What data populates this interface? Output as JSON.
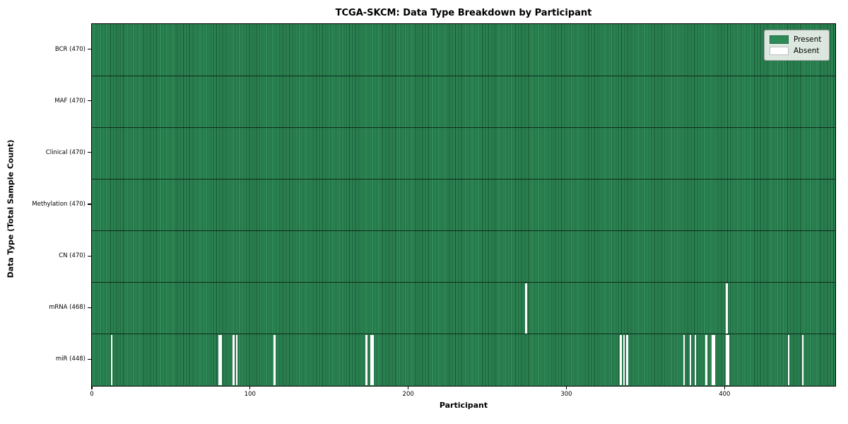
{
  "chart_data": {
    "type": "heatmap",
    "title": "TCGA-SKCM: Data Type Breakdown by Participant",
    "xlabel": "Participant",
    "ylabel": "Data Type (Total Sample Count)",
    "x_ticks": [
      0,
      100,
      200,
      300,
      400
    ],
    "x_range": [
      0,
      470
    ],
    "n_participants": 470,
    "grid": false,
    "legend_position": "upper right",
    "colors": {
      "present": "#2e8b57",
      "absent": "#ffffff",
      "cell_edge": "#17502f",
      "row_divider": "#000000"
    },
    "rows": [
      {
        "label": "BCR (470)",
        "data_type": "BCR",
        "total_samples": 470,
        "absent_participants": []
      },
      {
        "label": "MAF (470)",
        "data_type": "MAF",
        "total_samples": 470,
        "absent_participants": []
      },
      {
        "label": "Clinical (470)",
        "data_type": "Clinical",
        "total_samples": 470,
        "absent_participants": []
      },
      {
        "label": "Methylation (470)",
        "data_type": "Methylation",
        "total_samples": 470,
        "absent_participants": []
      },
      {
        "label": "CN (470)",
        "data_type": "CN",
        "total_samples": 470,
        "absent_participants": []
      },
      {
        "label": "mRNA (468)",
        "data_type": "mRNA",
        "total_samples": 468,
        "absent_participants": [
          274,
          401
        ]
      },
      {
        "label": "miR (448)",
        "data_type": "miR",
        "total_samples": 448,
        "absent_participants": [
          12,
          80,
          81,
          89,
          91,
          115,
          173,
          176,
          177,
          334,
          336,
          338,
          374,
          378,
          381,
          388,
          392,
          393,
          401,
          402,
          440,
          449
        ]
      }
    ],
    "legend": [
      {
        "label": "Present",
        "color": "#2e8b57"
      },
      {
        "label": "Absent",
        "color": "#ffffff"
      }
    ]
  }
}
